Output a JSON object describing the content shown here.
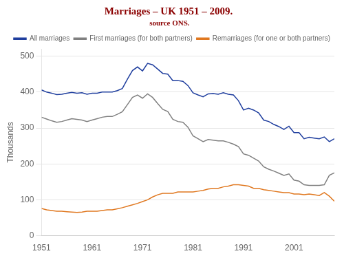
{
  "chart_data": {
    "type": "line",
    "title": "Marriages – UK 1951 – 2009.",
    "subtitle": " source ONS.",
    "ylabel": "Thousands",
    "x": [
      1951,
      1952,
      1953,
      1954,
      1955,
      1956,
      1957,
      1958,
      1959,
      1960,
      1961,
      1962,
      1963,
      1964,
      1965,
      1966,
      1967,
      1968,
      1969,
      1970,
      1971,
      1972,
      1973,
      1974,
      1975,
      1976,
      1977,
      1978,
      1979,
      1980,
      1981,
      1982,
      1983,
      1984,
      1985,
      1986,
      1987,
      1988,
      1989,
      1990,
      1991,
      1992,
      1993,
      1994,
      1995,
      1996,
      1997,
      1998,
      1999,
      2000,
      2001,
      2002,
      2003,
      2004,
      2005,
      2006,
      2007,
      2008,
      2009
    ],
    "series": [
      {
        "name": "All marriages",
        "color": "#1f3e9e",
        "values": [
          406,
          400,
          397,
          393,
          394,
          397,
          399,
          397,
          398,
          394,
          397,
          397,
          400,
          400,
          400,
          404,
          410,
          436,
          460,
          470,
          459,
          480,
          476,
          464,
          452,
          450,
          432,
          432,
          430,
          418,
          398,
          392,
          387,
          395,
          396,
          394,
          398,
          394,
          392,
          376,
          350,
          355,
          350,
          342,
          322,
          318,
          310,
          304,
          296,
          305,
          287,
          287,
          270,
          274,
          272,
          270,
          275,
          262,
          270
        ]
      },
      {
        "name": "First marriages (for both partners)",
        "color": "#808080",
        "values": [
          330,
          325,
          320,
          316,
          318,
          322,
          326,
          324,
          322,
          318,
          322,
          326,
          330,
          332,
          332,
          338,
          345,
          365,
          385,
          392,
          383,
          395,
          385,
          368,
          352,
          346,
          324,
          318,
          316,
          302,
          278,
          270,
          262,
          268,
          266,
          264,
          264,
          260,
          255,
          248,
          228,
          224,
          216,
          208,
          192,
          185,
          180,
          174,
          168,
          172,
          155,
          152,
          142,
          140,
          140,
          140,
          142,
          168,
          175
        ]
      },
      {
        "name": "Remarriages (for one or both partners)",
        "color": "#e07820",
        "values": [
          76,
          72,
          70,
          68,
          68,
          67,
          66,
          65,
          66,
          68,
          68,
          68,
          70,
          72,
          72,
          75,
          78,
          82,
          86,
          90,
          95,
          100,
          108,
          114,
          118,
          118,
          118,
          122,
          122,
          122,
          122,
          124,
          126,
          130,
          132,
          132,
          136,
          138,
          142,
          142,
          140,
          138,
          132,
          132,
          128,
          126,
          124,
          122,
          120,
          120,
          116,
          116,
          114,
          116,
          114,
          112,
          120,
          110,
          96
        ]
      }
    ],
    "xlim": [
      1951,
      2009
    ],
    "xticks": [
      1951,
      1961,
      1971,
      1981,
      1991,
      2001
    ],
    "ylim": [
      0,
      520
    ],
    "yticks": [
      0,
      100,
      200,
      300,
      400,
      500
    ],
    "grid": "y",
    "legend": "upper right"
  }
}
